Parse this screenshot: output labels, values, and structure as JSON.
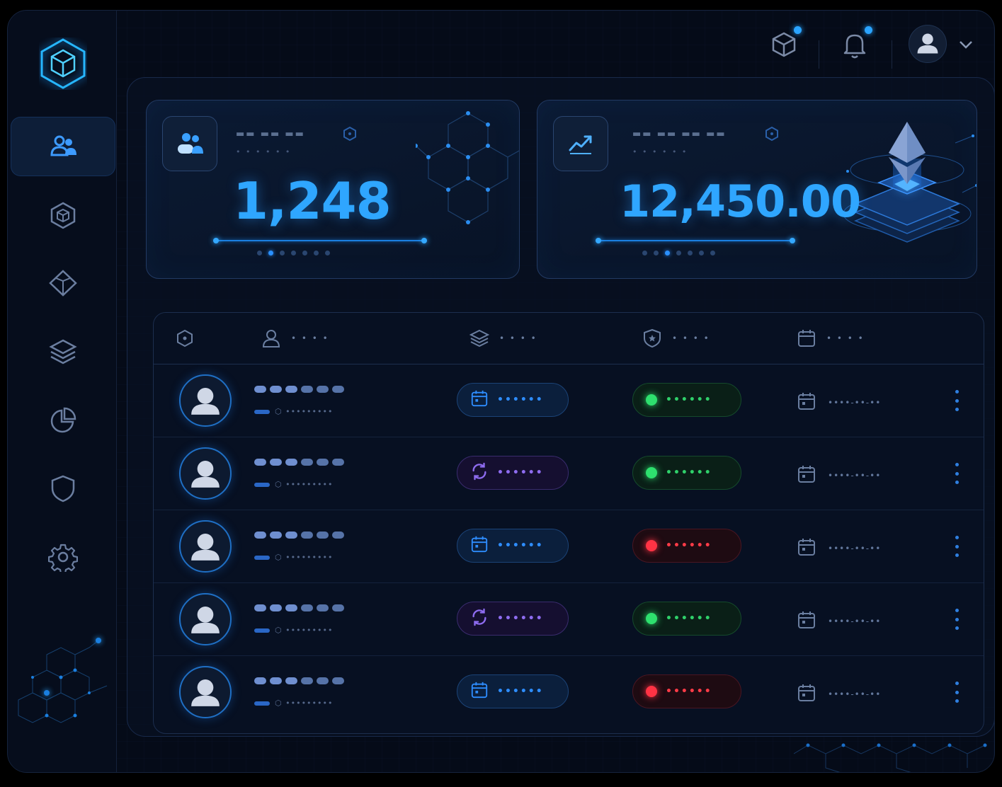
{
  "colors": {
    "accent": "#2fa6ff",
    "background": "#050b18",
    "status_active": "#2ee06e",
    "status_inactive": "#ff3344",
    "processing": "#8e6cf0"
  },
  "sidebar": {
    "logo_icon": "cube-hexagon-logo",
    "items": [
      {
        "icon": "users-icon",
        "active": true
      },
      {
        "icon": "cube-icon",
        "active": false
      },
      {
        "icon": "diamond-icon",
        "active": false
      },
      {
        "icon": "layers-icon",
        "active": false
      },
      {
        "icon": "pie-chart-icon",
        "active": false
      },
      {
        "icon": "shield-icon",
        "active": false
      },
      {
        "icon": "settings-gear-icon",
        "active": false
      }
    ]
  },
  "topbar": {
    "icons": [
      "cube-notification-icon",
      "bell-icon",
      "user-avatar-icon",
      "chevron-down-icon"
    ]
  },
  "stats": {
    "users": {
      "icon": "users-icon",
      "title": "▬▬ ▬▬ ▬▬",
      "subtitle": "• • • • • •",
      "value": "1,248",
      "page_active": 1,
      "pages": 7
    },
    "volume": {
      "icon": "trend-up-icon",
      "title": "▬▬ ▬▬ ▬▬ ▬▬",
      "subtitle": "• • • • • •",
      "value": "12,450.00",
      "page_active": 2,
      "pages": 7
    }
  },
  "table": {
    "columns": [
      {
        "icon": "hexagon-icon",
        "label": ""
      },
      {
        "icon": "user-icon",
        "label": "• • • •"
      },
      {
        "icon": "layers-icon",
        "label": "• • • •"
      },
      {
        "icon": "shield-star-icon",
        "label": "• • • •"
      },
      {
        "icon": "calendar-icon",
        "label": "• • • •"
      }
    ],
    "rows": [
      {
        "type": "blue",
        "type_icon": "calendar-icon",
        "type_text": "••••••",
        "status": "green",
        "status_text": "••••••",
        "date": "••••-••-••"
      },
      {
        "type": "purple",
        "type_icon": "sync-icon",
        "type_text": "••••••",
        "status": "green",
        "status_text": "••••••",
        "date": "••••-••-••"
      },
      {
        "type": "blue",
        "type_icon": "calendar-icon",
        "type_text": "••••••",
        "status": "red",
        "status_text": "••••••",
        "date": "••••-••-••"
      },
      {
        "type": "purple",
        "type_icon": "sync-icon",
        "type_text": "••••••",
        "status": "green",
        "status_text": "••••••",
        "date": "••••-••-••"
      },
      {
        "type": "blue",
        "type_icon": "calendar-icon",
        "type_text": "••••••",
        "status": "red",
        "status_text": "••••••",
        "date": "••••-••-••"
      }
    ],
    "row_meta": "⬡ •••••••••"
  }
}
